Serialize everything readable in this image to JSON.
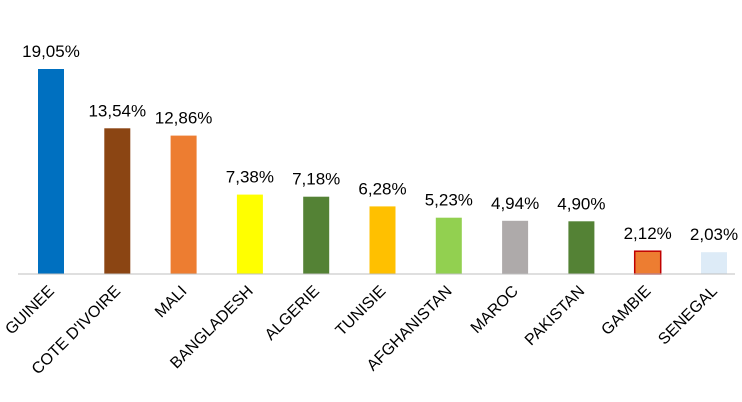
{
  "chart_data": {
    "type": "bar",
    "title": "",
    "xlabel": "",
    "ylabel": "",
    "ylim": [
      0,
      19.05
    ],
    "grid": false,
    "legend": "none",
    "categories": [
      "GUINEE",
      "COTE D'IVOIRE",
      "MALI",
      "BANGLADESH",
      "ALGERIE",
      "TUNISIE",
      "AFGHANISTAN",
      "MAROC",
      "PAKISTAN",
      "GAMBIE",
      "SENEGAL"
    ],
    "values": [
      19.05,
      13.54,
      12.86,
      7.38,
      7.18,
      6.28,
      5.23,
      4.94,
      4.9,
      2.12,
      2.03
    ],
    "data_labels": [
      "19,05%",
      "13,54%",
      "12,86%",
      "7,38%",
      "7,18%",
      "6,28%",
      "5,23%",
      "4,94%",
      "4,90%",
      "2,12%",
      "2,03%"
    ],
    "colors": [
      "#0070C0",
      "#8B4513",
      "#ED7D31",
      "#FFFF00",
      "#548235",
      "#FFC000",
      "#92D050",
      "#AEAAAA",
      "#548235",
      "#ED7D31",
      "#DDEBF7"
    ],
    "outline_colors": [
      "",
      "",
      "",
      "",
      "",
      "",
      "",
      "",
      "",
      "#C00000",
      ""
    ]
  }
}
